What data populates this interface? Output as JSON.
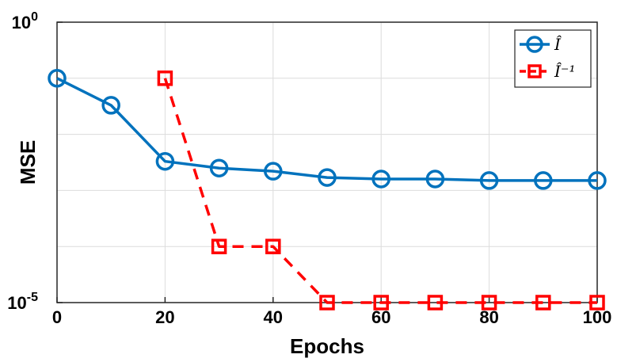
{
  "chart_data": {
    "type": "line",
    "xlabel": "Epochs",
    "ylabel": "MSE",
    "yscale": "log",
    "xlim": [
      0,
      100
    ],
    "ylim_exponent": [
      -5,
      0
    ],
    "grid": true,
    "legend_position": "top-right",
    "x_ticks": [
      "0",
      "20",
      "40",
      "60",
      "80",
      "100"
    ],
    "y_ticks": [
      {
        "base": "10",
        "exp": "0"
      },
      {
        "base": "10",
        "exp": "-5"
      }
    ],
    "series": [
      {
        "name": "Î",
        "color": "#0072bd",
        "marker": "circle",
        "line": "solid",
        "x": [
          0,
          10,
          20,
          30,
          40,
          50,
          60,
          70,
          80,
          90,
          100
        ],
        "y": [
          0.1,
          0.033,
          0.0033,
          0.0025,
          0.0022,
          0.0017,
          0.0016,
          0.0016,
          0.0015,
          0.0015,
          0.0015
        ]
      },
      {
        "name": "Î⁻¹",
        "color": "#ff0000",
        "marker": "square",
        "line": "dashed",
        "x": [
          20,
          30,
          40,
          50,
          60,
          70,
          80,
          90,
          100
        ],
        "y": [
          0.1,
          0.0001,
          0.0001,
          1e-05,
          1e-05,
          1e-05,
          1e-05,
          1e-05,
          1e-05
        ]
      }
    ]
  }
}
